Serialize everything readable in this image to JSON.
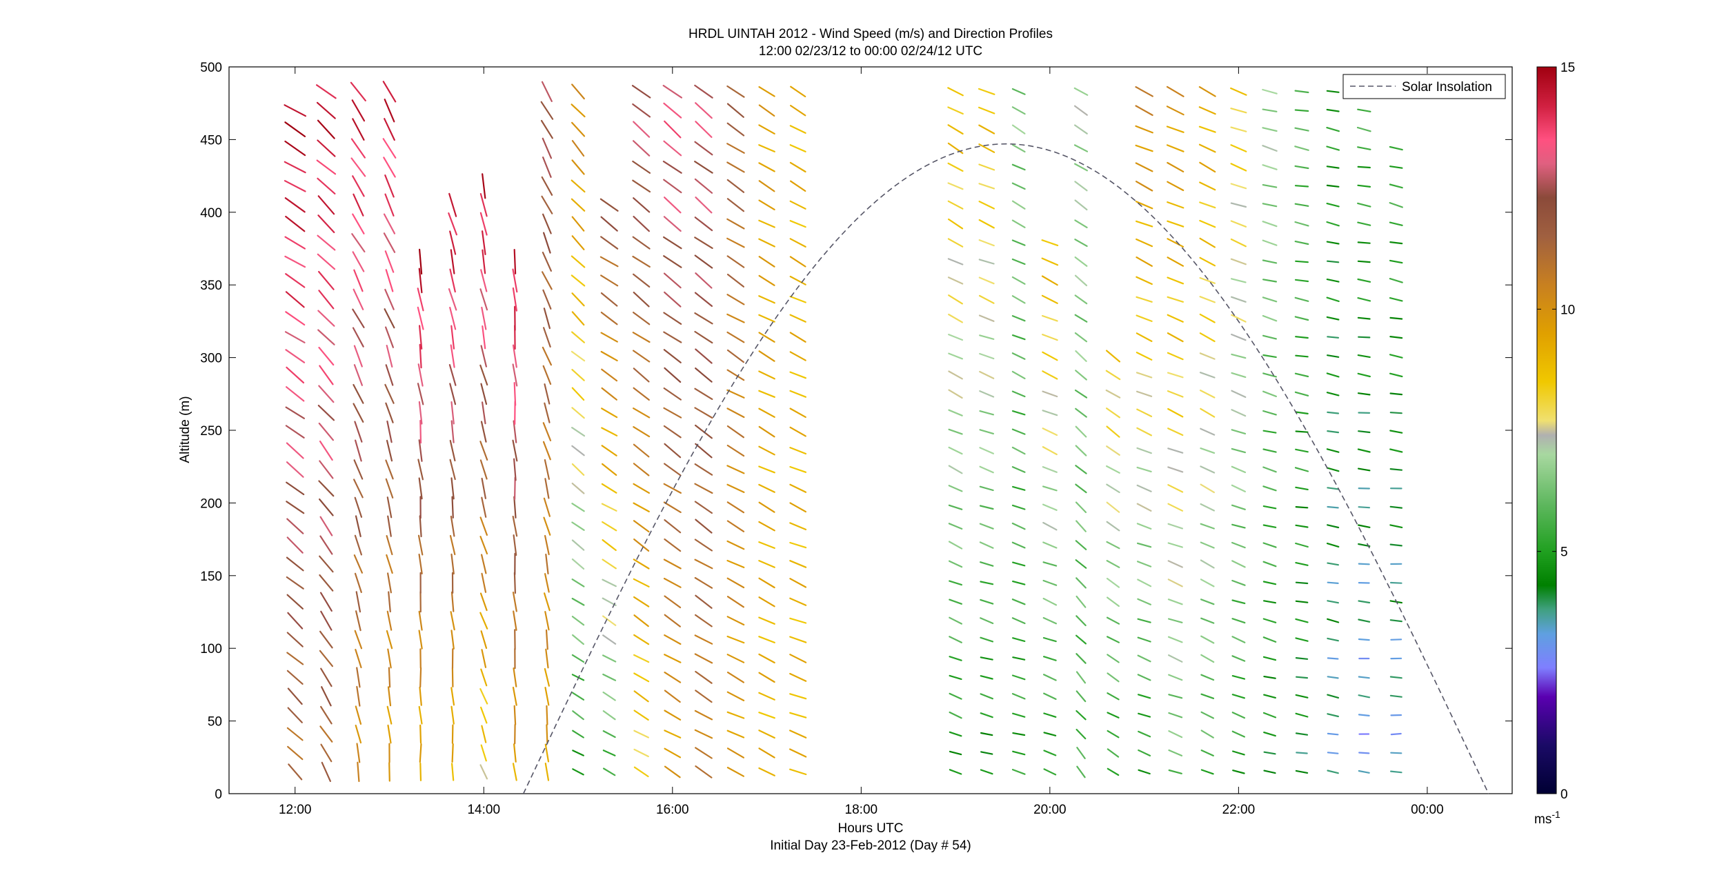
{
  "title_line1": "HRDL UINTAH 2012 - Wind Speed (m/s) and Direction Profiles",
  "title_line2": "12:00 02/23/12 to 00:00 02/24/12  UTC",
  "xlabel": "Hours UTC",
  "xlabel2": "Initial Day 23-Feb-2012 (Day # 54)",
  "ylabel": "Altitude (m)",
  "legend_label": "Solar Insolation",
  "colorbar_unit_base": "ms",
  "colorbar_unit_exp": "-1",
  "colors": {
    "solar_line": "#555566",
    "colormap_stops": [
      [
        0,
        "#000033"
      ],
      [
        1,
        "#1a0a66"
      ],
      [
        2,
        "#5a00b0"
      ],
      [
        2.6,
        "#7f7fff"
      ],
      [
        3.3,
        "#5fa0e0"
      ],
      [
        3.8,
        "#40a080"
      ],
      [
        4.3,
        "#008000"
      ],
      [
        5,
        "#20a020"
      ],
      [
        6,
        "#60b860"
      ],
      [
        7,
        "#a8d8a0"
      ],
      [
        7.4,
        "#b0b0b0"
      ],
      [
        7.7,
        "#f0e070"
      ],
      [
        8.5,
        "#f0c800"
      ],
      [
        9.5,
        "#e0a000"
      ],
      [
        10.5,
        "#c88020"
      ],
      [
        11.5,
        "#a06040"
      ],
      [
        12.3,
        "#8b4a3a"
      ],
      [
        13,
        "#e06080"
      ],
      [
        13.5,
        "#ff5080"
      ],
      [
        14.2,
        "#d02040"
      ],
      [
        15,
        "#a00010"
      ]
    ]
  },
  "chart_data": {
    "type": "wind-barb-profile",
    "xlim": [
      11.3,
      24.9
    ],
    "ylim": [
      0,
      500
    ],
    "x_ticks": [
      12,
      14,
      16,
      18,
      20,
      22,
      24
    ],
    "x_tick_labels": [
      "12:00",
      "14:00",
      "16:00",
      "18:00",
      "20:00",
      "22:00",
      "00:00"
    ],
    "y_ticks": [
      0,
      50,
      100,
      150,
      200,
      250,
      300,
      350,
      400,
      450,
      500
    ],
    "y_tick_labels": [
      "0",
      "50",
      "100",
      "150",
      "200",
      "250",
      "300",
      "350",
      "400",
      "450",
      "500"
    ],
    "colorbar_range": [
      0,
      15
    ],
    "colorbar_ticks": [
      0,
      5,
      10,
      15
    ],
    "colorbar_tick_labels": [
      "0",
      "5",
      "10",
      "15"
    ],
    "legend_position": "top-right",
    "solar_insolation": {
      "style": "dashed",
      "start_time": 14.42,
      "peak_time": 19.55,
      "end_time": 24.65,
      "peak_altitude": 447
    },
    "profiles": [
      {
        "time": 12.0,
        "top": 480,
        "bottom": 15,
        "speed_low": 11.0,
        "speed_high": 14.8,
        "dir_low": 315,
        "dir_high": 300
      },
      {
        "time": 12.33,
        "top": 495,
        "bottom": 15,
        "speed_low": 11.2,
        "speed_high": 14.6,
        "dir_low": 330,
        "dir_high": 310
      },
      {
        "time": 12.67,
        "top": 495,
        "bottom": 15,
        "speed_low": 10.0,
        "speed_high": 14.5,
        "dir_low": 350,
        "dir_high": 325
      },
      {
        "time": 13.0,
        "top": 495,
        "bottom": 15,
        "speed_low": 9.5,
        "speed_high": 14.5,
        "dir_low": 355,
        "dir_high": 330
      },
      {
        "time": 13.33,
        "top": 370,
        "bottom": 15,
        "speed_low": 9.0,
        "speed_high": 14.6,
        "dir_low": 358,
        "dir_high": 350
      },
      {
        "time": 13.67,
        "top": 405,
        "bottom": 15,
        "speed_low": 9.0,
        "speed_high": 14.6,
        "dir_low": 358,
        "dir_high": 345
      },
      {
        "time": 14.0,
        "top": 425,
        "bottom": 15,
        "speed_low": 8.0,
        "speed_high": 14.7,
        "dir_low": 340,
        "dir_high": 350
      },
      {
        "time": 14.33,
        "top": 370,
        "bottom": 15,
        "speed_low": 9.5,
        "speed_high": 14.5,
        "dir_low": 355,
        "dir_high": 355
      },
      {
        "time": 14.67,
        "top": 495,
        "bottom": 15,
        "speed_low": 9.5,
        "speed_high": 12.5,
        "dir_low": 355,
        "dir_high": 330
      },
      {
        "time": 15.0,
        "top": 495,
        "bottom": 15,
        "speed_low": 5.0,
        "speed_high": 10.5,
        "dir_low": 300,
        "dir_high": 320
      },
      {
        "time": 15.33,
        "top": 405,
        "bottom": 15,
        "speed_low": 5.5,
        "speed_high": 12.0,
        "dir_low": 300,
        "dir_high": 305
      },
      {
        "time": 15.67,
        "top": 495,
        "bottom": 15,
        "speed_low": 8.0,
        "speed_high": 13.0,
        "dir_low": 300,
        "dir_high": 310
      },
      {
        "time": 16.0,
        "top": 495,
        "bottom": 15,
        "speed_low": 9.5,
        "speed_high": 13.5,
        "dir_low": 300,
        "dir_high": 310
      },
      {
        "time": 16.33,
        "top": 495,
        "bottom": 15,
        "speed_low": 10.5,
        "speed_high": 13.0,
        "dir_low": 300,
        "dir_high": 310
      },
      {
        "time": 16.67,
        "top": 495,
        "bottom": 15,
        "speed_low": 9.5,
        "speed_high": 11.5,
        "dir_low": 295,
        "dir_high": 305
      },
      {
        "time": 17.0,
        "top": 495,
        "bottom": 15,
        "speed_low": 9.0,
        "speed_high": 9.5,
        "dir_low": 295,
        "dir_high": 300
      },
      {
        "time": 17.33,
        "top": 495,
        "bottom": 15,
        "speed_low": 9.0,
        "speed_high": 9.0,
        "dir_low": 290,
        "dir_high": 300
      },
      {
        "time": 19.0,
        "top": 495,
        "bottom": 15,
        "speed_low": 4.8,
        "speed_high": 9.0,
        "dir_low": 290,
        "dir_high": 300
      },
      {
        "time": 19.33,
        "top": 495,
        "bottom": 15,
        "speed_low": 4.5,
        "speed_high": 9.0,
        "dir_low": 285,
        "dir_high": 295
      },
      {
        "time": 19.67,
        "top": 495,
        "bottom": 15,
        "speed_low": 5.0,
        "speed_high": 6.5,
        "dir_low": 285,
        "dir_high": 300
      },
      {
        "time": 20.0,
        "top": 380,
        "bottom": 15,
        "speed_low": 4.8,
        "speed_high": 9.0,
        "dir_low": 290,
        "dir_high": 295
      },
      {
        "time": 20.33,
        "top": 495,
        "bottom": 15,
        "speed_low": 5.5,
        "speed_high": 7.0,
        "dir_low": 320,
        "dir_high": 300
      },
      {
        "time": 20.67,
        "top": 310,
        "bottom": 15,
        "speed_low": 5.0,
        "speed_high": 8.5,
        "dir_low": 300,
        "dir_high": 305
      },
      {
        "time": 21.0,
        "top": 495,
        "bottom": 15,
        "speed_low": 4.8,
        "speed_high": 10.5,
        "dir_low": 290,
        "dir_high": 295
      },
      {
        "time": 21.33,
        "top": 495,
        "bottom": 15,
        "speed_low": 6.0,
        "speed_high": 10.0,
        "dir_low": 290,
        "dir_high": 295
      },
      {
        "time": 21.67,
        "top": 495,
        "bottom": 15,
        "speed_low": 5.5,
        "speed_high": 9.5,
        "dir_low": 295,
        "dir_high": 295
      },
      {
        "time": 22.0,
        "top": 495,
        "bottom": 15,
        "speed_low": 5.0,
        "speed_high": 8.5,
        "dir_low": 290,
        "dir_high": 290
      },
      {
        "time": 22.33,
        "top": 495,
        "bottom": 15,
        "speed_low": 4.5,
        "speed_high": 7.0,
        "dir_low": 285,
        "dir_high": 285
      },
      {
        "time": 22.67,
        "top": 495,
        "bottom": 15,
        "speed_low": 4.2,
        "speed_high": 6.0,
        "dir_low": 280,
        "dir_high": 280
      },
      {
        "time": 23.0,
        "top": 490,
        "bottom": 15,
        "speed_low": 3.5,
        "speed_high": 5.0,
        "dir_low": 280,
        "dir_high": 282
      },
      {
        "time": 23.33,
        "top": 480,
        "bottom": 15,
        "speed_low": 3.0,
        "speed_high": 5.5,
        "dir_low": 275,
        "dir_high": 280
      },
      {
        "time": 23.67,
        "top": 450,
        "bottom": 15,
        "speed_low": 3.2,
        "speed_high": 5.5,
        "dir_low": 270,
        "dir_high": 285
      }
    ]
  }
}
